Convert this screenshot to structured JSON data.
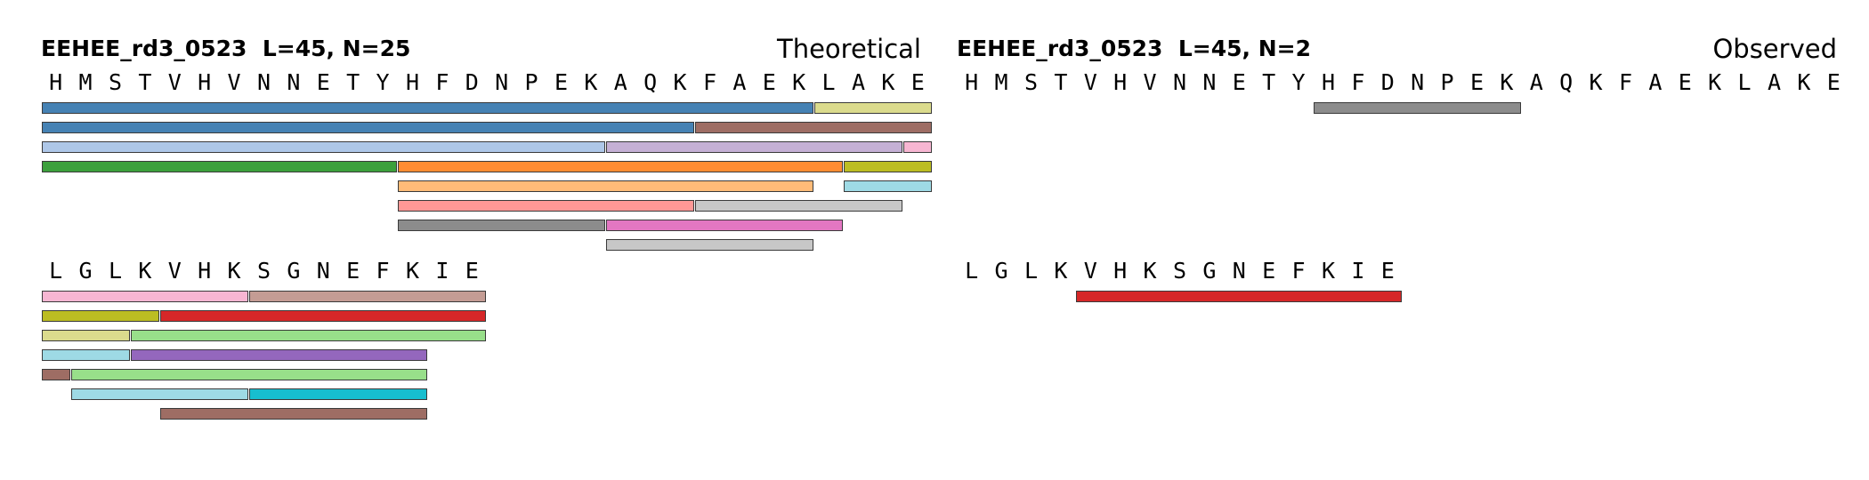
{
  "palette": {
    "blue": "#4682b4",
    "olive_light": "#dbdb8d",
    "brown": "#9e6d64",
    "blue_light": "#aec7e8",
    "purple_light": "#c5b0d5",
    "pink_light": "#f7b6d2",
    "green": "#3ca03c",
    "orange": "#ff8c32",
    "olive": "#bcbd22",
    "orange_light": "#ffbb78",
    "cyan_light": "#9edae5",
    "salmon": "#ff9896",
    "grey_light": "#c7c7c7",
    "grey": "#8c8c8c",
    "pink": "#e377c2",
    "tan": "#c49c94",
    "red": "#d62728",
    "green_light": "#98df8a",
    "purple": "#9467bd",
    "cyan": "#17becf"
  },
  "panels": [
    {
      "id": "theoretical",
      "title": "EEHEE_rd3_0523  L=45, N=25",
      "mode": "Theoretical",
      "blocks": [
        {
          "start": 1,
          "residues": [
            "H",
            "M",
            "S",
            "T",
            "V",
            "H",
            "V",
            "N",
            "N",
            "E",
            "T",
            "Y",
            "H",
            "F",
            "D",
            "N",
            "P",
            "E",
            "K",
            "A",
            "Q",
            "K",
            "F",
            "A",
            "E",
            "K",
            "L",
            "A",
            "K",
            "E"
          ],
          "rows": [
            [
              {
                "start": 1,
                "end": 26,
                "color": "blue"
              },
              {
                "start": 27,
                "end": 30,
                "color": "olive_light"
              }
            ],
            [
              {
                "start": 1,
                "end": 22,
                "color": "blue"
              },
              {
                "start": 23,
                "end": 30,
                "color": "brown"
              }
            ],
            [
              {
                "start": 1,
                "end": 19,
                "color": "blue_light"
              },
              {
                "start": 20,
                "end": 29,
                "color": "purple_light"
              },
              {
                "start": 30,
                "end": 30,
                "color": "pink_light"
              }
            ],
            [
              {
                "start": 1,
                "end": 12,
                "color": "green"
              },
              {
                "start": 13,
                "end": 27,
                "color": "orange"
              },
              {
                "start": 28,
                "end": 30,
                "color": "olive"
              }
            ],
            [
              {
                "start": 13,
                "end": 26,
                "color": "orange_light"
              },
              {
                "start": 28,
                "end": 30,
                "color": "cyan_light"
              }
            ],
            [
              {
                "start": 13,
                "end": 22,
                "color": "salmon"
              },
              {
                "start": 23,
                "end": 29,
                "color": "grey_light"
              }
            ],
            [
              {
                "start": 13,
                "end": 19,
                "color": "grey"
              },
              {
                "start": 20,
                "end": 27,
                "color": "pink"
              }
            ],
            [
              {
                "start": 20,
                "end": 26,
                "color": "grey_light"
              }
            ]
          ]
        },
        {
          "start": 31,
          "residues": [
            "L",
            "G",
            "L",
            "K",
            "V",
            "H",
            "K",
            "S",
            "G",
            "N",
            "E",
            "F",
            "K",
            "I",
            "E"
          ],
          "rows": [
            [
              {
                "start": 31,
                "end": 37,
                "color": "pink_light"
              },
              {
                "start": 38,
                "end": 45,
                "color": "tan"
              }
            ],
            [
              {
                "start": 31,
                "end": 34,
                "color": "olive"
              },
              {
                "start": 35,
                "end": 45,
                "color": "red"
              }
            ],
            [
              {
                "start": 31,
                "end": 33,
                "color": "olive_light"
              },
              {
                "start": 34,
                "end": 45,
                "color": "green_light"
              }
            ],
            [
              {
                "start": 31,
                "end": 33,
                "color": "cyan_light"
              },
              {
                "start": 34,
                "end": 43,
                "color": "purple"
              }
            ],
            [
              {
                "start": 31,
                "end": 31,
                "color": "brown"
              },
              {
                "start": 32,
                "end": 43,
                "color": "green_light"
              }
            ],
            [
              {
                "start": 32,
                "end": 37,
                "color": "cyan_light"
              },
              {
                "start": 38,
                "end": 43,
                "color": "cyan"
              }
            ],
            [
              {
                "start": 35,
                "end": 43,
                "color": "brown"
              }
            ]
          ]
        }
      ]
    },
    {
      "id": "observed",
      "title": "EEHEE_rd3_0523  L=45, N=2",
      "mode": "Observed",
      "blocks": [
        {
          "start": 1,
          "residues": [
            "H",
            "M",
            "S",
            "T",
            "V",
            "H",
            "V",
            "N",
            "N",
            "E",
            "T",
            "Y",
            "H",
            "F",
            "D",
            "N",
            "P",
            "E",
            "K",
            "A",
            "Q",
            "K",
            "F",
            "A",
            "E",
            "K",
            "L",
            "A",
            "K",
            "E"
          ],
          "rows": [
            [
              {
                "start": 13,
                "end": 19,
                "color": "grey"
              }
            ]
          ]
        },
        {
          "start": 31,
          "residues": [
            "L",
            "G",
            "L",
            "K",
            "V",
            "H",
            "K",
            "S",
            "G",
            "N",
            "E",
            "F",
            "K",
            "I",
            "E"
          ],
          "rows": [
            [
              {
                "start": 35,
                "end": 45,
                "color": "red"
              }
            ]
          ]
        }
      ]
    }
  ]
}
